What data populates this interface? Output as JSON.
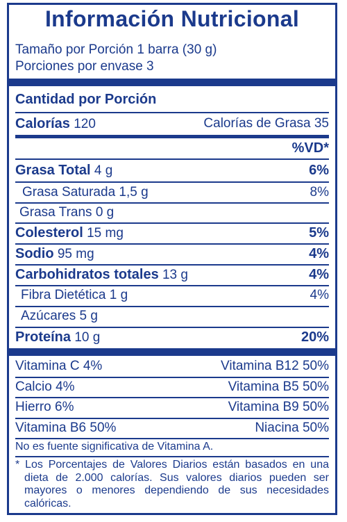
{
  "title": "Información Nutricional",
  "serving_size": "Tamaño por Porción 1 barra (30 g)",
  "servings": "Porciones por envase 3",
  "amount_header": "Cantidad por Porción",
  "calories_label": "Calorías",
  "calories_value": "120",
  "fat_calories": "Calorías de Grasa 35",
  "dv_header": "%VD*",
  "nutrients": [
    {
      "name": "Grasa Total",
      "amount": "4 g",
      "dv": "6%"
    },
    {
      "name": "Grasa Saturada",
      "amount": "1,5 g",
      "dv": "8%"
    },
    {
      "name": "Grasa Trans",
      "amount": "0 g",
      "dv": ""
    },
    {
      "name": "Colesterol",
      "amount": "15 mg",
      "dv": "5%"
    },
    {
      "name": "Sodio",
      "amount": "95 mg",
      "dv": "4%"
    },
    {
      "name": "Carbohidratos totales",
      "amount": "13 g",
      "dv": "4%"
    },
    {
      "name": "Fibra Dietética",
      "amount": "1 g",
      "dv": "4%"
    },
    {
      "name": "Azúcares",
      "amount": "5 g",
      "dv": ""
    },
    {
      "name": "Proteína",
      "amount": "10 g",
      "dv": "20%"
    }
  ],
  "vitamins": [
    {
      "left": "Vitamina C 4%",
      "right": "Vitamina B12 50%"
    },
    {
      "left": "Calcio 4%",
      "right": "Vitamina B5 50%"
    },
    {
      "left": "Hierro 6%",
      "right": "Vitamina B9 50%"
    },
    {
      "left": "Vitamina B6 50%",
      "right": "Niacina 50%"
    }
  ],
  "note": "No es fuente significativa de Vitamina A.",
  "footnote": "* Los Porcentajes de Valores Diarios están basados en una dieta de 2.000 calorías. Sus valores diarios pueden ser mayores o menores dependiendo de sus necesidades calóricas.",
  "colors": {
    "ink": "#1b3a8c",
    "background": "#ffffff"
  }
}
